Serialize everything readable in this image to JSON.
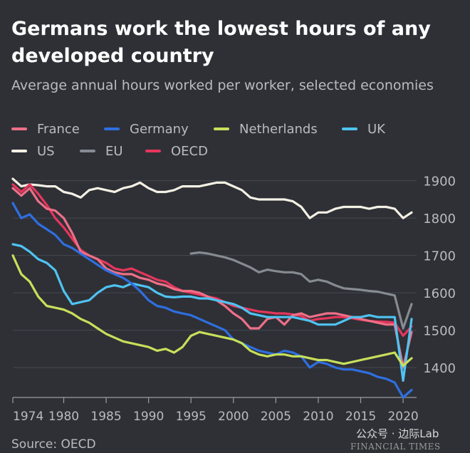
{
  "chart_data": {
    "type": "line",
    "title": "Germans work the lowest hours of any developed country",
    "subtitle": "Average annual hours worked per worker, selected economies",
    "source": "Source: OECD",
    "xlim": [
      1974,
      2021
    ],
    "ylim": [
      1320,
      1930
    ],
    "x_ticks": [
      1974,
      1980,
      1985,
      1990,
      1995,
      2000,
      2005,
      2010,
      2015,
      2020
    ],
    "y_ticks": [
      1400,
      1500,
      1600,
      1700,
      1800,
      1900
    ],
    "grid": true,
    "legend_position": "top",
    "series": [
      {
        "name": "US",
        "color": "#f4f0e4",
        "x": [
          1974,
          1975,
          1976,
          1977,
          1978,
          1979,
          1980,
          1981,
          1982,
          1983,
          1984,
          1985,
          1986,
          1987,
          1988,
          1989,
          1990,
          1991,
          1992,
          1993,
          1994,
          1995,
          1996,
          1997,
          1998,
          1999,
          2000,
          2001,
          2002,
          2003,
          2004,
          2005,
          2006,
          2007,
          2008,
          2009,
          2010,
          2011,
          2012,
          2013,
          2014,
          2015,
          2016,
          2017,
          2018,
          2019,
          2020,
          2021
        ],
        "y": [
          1905,
          1885,
          1890,
          1888,
          1885,
          1885,
          1870,
          1865,
          1855,
          1875,
          1880,
          1875,
          1870,
          1880,
          1885,
          1895,
          1880,
          1870,
          1870,
          1875,
          1885,
          1885,
          1885,
          1890,
          1895,
          1895,
          1885,
          1875,
          1855,
          1850,
          1850,
          1850,
          1850,
          1845,
          1830,
          1800,
          1815,
          1815,
          1825,
          1830,
          1830,
          1830,
          1825,
          1830,
          1830,
          1825,
          1800,
          1815
        ]
      },
      {
        "name": "EU",
        "color": "#868b92",
        "x": [
          1995,
          1996,
          1997,
          1998,
          1999,
          2000,
          2001,
          2002,
          2003,
          2004,
          2005,
          2006,
          2007,
          2008,
          2009,
          2010,
          2011,
          2012,
          2013,
          2014,
          2015,
          2016,
          2017,
          2018,
          2019,
          2020,
          2021
        ],
        "y": [
          1705,
          1708,
          1705,
          1700,
          1695,
          1688,
          1678,
          1668,
          1655,
          1662,
          1658,
          1655,
          1655,
          1650,
          1630,
          1635,
          1630,
          1620,
          1612,
          1610,
          1608,
          1605,
          1603,
          1598,
          1593,
          1505,
          1570
        ]
      },
      {
        "name": "OECD",
        "color": "#e6365c",
        "x": [
          1974,
          1975,
          1976,
          1977,
          1978,
          1979,
          1980,
          1981,
          1982,
          1983,
          1984,
          1985,
          1986,
          1987,
          1988,
          1989,
          1990,
          1991,
          1992,
          1993,
          1994,
          1995,
          1996,
          1997,
          1998,
          1999,
          2000,
          2001,
          2002,
          2003,
          2004,
          2005,
          2006,
          2007,
          2008,
          2009,
          2010,
          2011,
          2012,
          2013,
          2014,
          2015,
          2016,
          2017,
          2018,
          2019,
          2020,
          2021
        ],
        "y": [
          1890,
          1870,
          1890,
          1865,
          1835,
          1800,
          1775,
          1745,
          1715,
          1700,
          1690,
          1680,
          1665,
          1660,
          1665,
          1655,
          1645,
          1635,
          1630,
          1615,
          1605,
          1600,
          1595,
          1590,
          1585,
          1575,
          1565,
          1560,
          1555,
          1550,
          1548,
          1545,
          1545,
          1542,
          1538,
          1525,
          1530,
          1532,
          1535,
          1535,
          1532,
          1528,
          1525,
          1523,
          1522,
          1520,
          1485,
          1510
        ]
      },
      {
        "name": "France",
        "color": "#ee6f87",
        "x": [
          1974,
          1975,
          1976,
          1977,
          1978,
          1979,
          1980,
          1981,
          1982,
          1983,
          1984,
          1985,
          1986,
          1987,
          1988,
          1989,
          1990,
          1991,
          1992,
          1993,
          1994,
          1995,
          1996,
          1997,
          1998,
          1999,
          2000,
          2001,
          2002,
          2003,
          2004,
          2005,
          2006,
          2007,
          2008,
          2009,
          2010,
          2011,
          2012,
          2013,
          2014,
          2015,
          2016,
          2017,
          2018,
          2019,
          2020,
          2021
        ],
        "y": [
          1880,
          1860,
          1880,
          1845,
          1825,
          1820,
          1800,
          1760,
          1710,
          1700,
          1690,
          1665,
          1655,
          1650,
          1650,
          1640,
          1635,
          1625,
          1620,
          1610,
          1605,
          1605,
          1600,
          1590,
          1580,
          1565,
          1545,
          1530,
          1505,
          1505,
          1530,
          1535,
          1515,
          1540,
          1545,
          1535,
          1540,
          1545,
          1545,
          1540,
          1535,
          1530,
          1525,
          1520,
          1515,
          1515,
          1400,
          1495
        ]
      },
      {
        "name": "UK",
        "color": "#4fc3f2",
        "x": [
          1974,
          1975,
          1976,
          1977,
          1978,
          1979,
          1980,
          1981,
          1982,
          1983,
          1984,
          1985,
          1986,
          1987,
          1988,
          1989,
          1990,
          1991,
          1992,
          1993,
          1994,
          1995,
          1996,
          1997,
          1998,
          1999,
          2000,
          2001,
          2002,
          2003,
          2004,
          2005,
          2006,
          2007,
          2008,
          2009,
          2010,
          2011,
          2012,
          2013,
          2014,
          2015,
          2016,
          2017,
          2018,
          2019,
          2020,
          2021
        ],
        "y": [
          1730,
          1725,
          1710,
          1690,
          1680,
          1660,
          1605,
          1570,
          1575,
          1580,
          1600,
          1615,
          1620,
          1615,
          1625,
          1620,
          1615,
          1600,
          1590,
          1588,
          1590,
          1590,
          1585,
          1585,
          1580,
          1575,
          1570,
          1560,
          1545,
          1540,
          1535,
          1535,
          1535,
          1535,
          1530,
          1525,
          1515,
          1515,
          1515,
          1525,
          1535,
          1535,
          1540,
          1535,
          1535,
          1535,
          1365,
          1530
        ]
      },
      {
        "name": "Germany",
        "color": "#2f6fe0",
        "x": [
          1974,
          1975,
          1976,
          1977,
          1978,
          1979,
          1980,
          1981,
          1982,
          1983,
          1984,
          1985,
          1986,
          1987,
          1988,
          1989,
          1990,
          1991,
          1992,
          1993,
          1994,
          1995,
          1996,
          1997,
          1998,
          1999,
          2000,
          2001,
          2002,
          2003,
          2004,
          2005,
          2006,
          2007,
          2008,
          2009,
          2010,
          2011,
          2012,
          2013,
          2014,
          2015,
          2016,
          2017,
          2018,
          2019,
          2020,
          2021
        ],
        "y": [
          1840,
          1800,
          1810,
          1785,
          1770,
          1755,
          1730,
          1720,
          1705,
          1690,
          1675,
          1660,
          1650,
          1640,
          1625,
          1605,
          1580,
          1565,
          1560,
          1550,
          1545,
          1540,
          1530,
          1520,
          1510,
          1500,
          1475,
          1465,
          1455,
          1445,
          1440,
          1435,
          1445,
          1440,
          1430,
          1400,
          1415,
          1410,
          1400,
          1395,
          1395,
          1390,
          1385,
          1375,
          1370,
          1360,
          1320,
          1340
        ]
      },
      {
        "name": "Netherlands",
        "color": "#c7e05a",
        "x": [
          1974,
          1975,
          1976,
          1977,
          1978,
          1979,
          1980,
          1981,
          1982,
          1983,
          1984,
          1985,
          1986,
          1987,
          1988,
          1989,
          1990,
          1991,
          1992,
          1993,
          1994,
          1995,
          1996,
          1997,
          1998,
          1999,
          2000,
          2001,
          2002,
          2003,
          2004,
          2005,
          2006,
          2007,
          2008,
          2009,
          2010,
          2011,
          2012,
          2013,
          2014,
          2015,
          2016,
          2017,
          2018,
          2019,
          2020,
          2021
        ],
        "y": [
          1700,
          1650,
          1630,
          1590,
          1565,
          1560,
          1555,
          1545,
          1530,
          1520,
          1505,
          1490,
          1480,
          1470,
          1465,
          1460,
          1455,
          1445,
          1450,
          1440,
          1455,
          1485,
          1495,
          1490,
          1485,
          1480,
          1475,
          1465,
          1445,
          1435,
          1430,
          1435,
          1435,
          1430,
          1430,
          1425,
          1420,
          1420,
          1415,
          1410,
          1415,
          1420,
          1425,
          1430,
          1435,
          1440,
          1405,
          1425
        ]
      }
    ],
    "legend_order": [
      "France",
      "Germany",
      "Netherlands",
      "UK",
      "US",
      "EU",
      "OECD"
    ]
  },
  "watermark": "公众号 · 边际Lab",
  "brand": "FINANCIAL TIMES"
}
